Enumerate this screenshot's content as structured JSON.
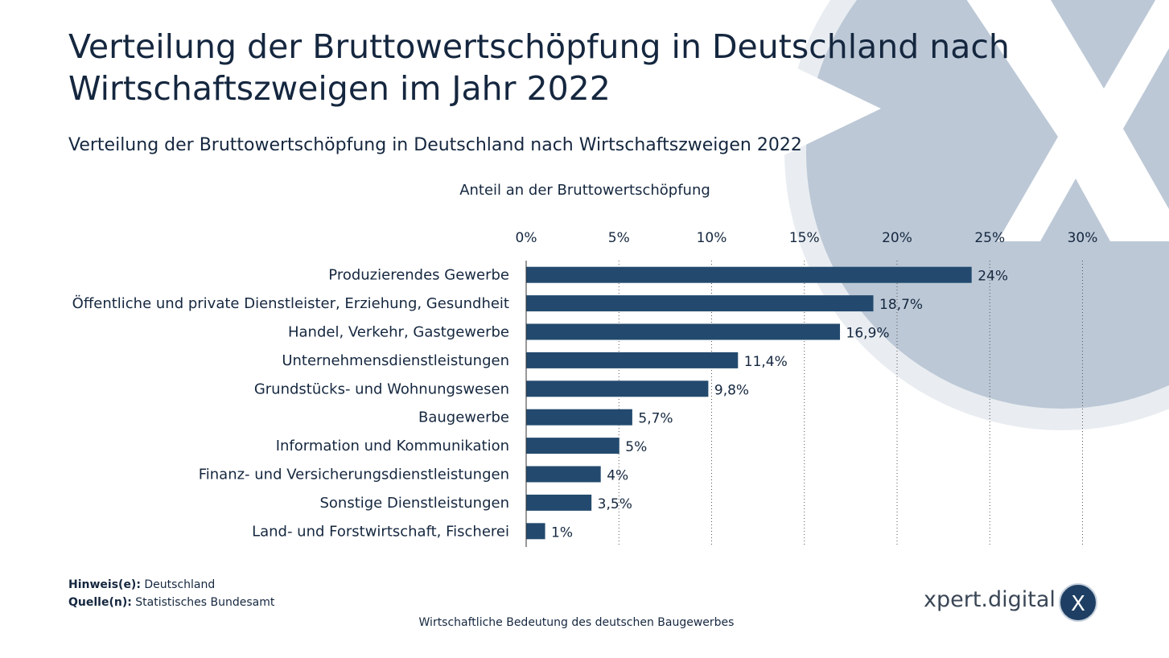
{
  "title": "Verteilung der Bruttowertschöpfung in Deutschland nach Wirtschaftszweigen im Jahr 2022",
  "subtitle": "Verteilung der Bruttowertschöpfung in Deutschland nach Wirtschaftszweigen 2022",
  "notes": {
    "hint_label": "Hinweis(e):",
    "hint_value": "Deutschland",
    "source_label": "Quelle(n):",
    "source_value": "Statistisches Bundesamt"
  },
  "footer": "Wirtschaftliche Bedeutung des deutschen Baugewerbes",
  "brand": {
    "name": "xpert.digital",
    "badge_letter": "X"
  },
  "colors": {
    "bar": "#234a6e",
    "decoration": "#bcc8d6",
    "text": "#15273f"
  },
  "chart_data": {
    "type": "bar",
    "orientation": "horizontal",
    "xlabel": "Anteil an der Bruttowertschöpfung",
    "xlim": [
      0,
      30
    ],
    "xticks": [
      "0%",
      "5%",
      "10%",
      "15%",
      "20%",
      "25%",
      "30%"
    ],
    "grid": true,
    "categories": [
      "Produzierendes Gewerbe",
      "Öffentliche und private Dienstleister, Erziehung, Gesundheit",
      "Handel, Verkehr, Gastgewerbe",
      "Unternehmensdienstleistungen",
      "Grundstücks- und Wohnungswesen",
      "Baugewerbe",
      "Information und Kommunikation",
      "Finanz- und Versicherungsdienstleistungen",
      "Sonstige Dienstleistungen",
      "Land- und Forstwirtschaft, Fischerei"
    ],
    "values": [
      24,
      18.7,
      16.9,
      11.4,
      9.8,
      5.7,
      5,
      4,
      3.5,
      1
    ],
    "value_labels": [
      "24%",
      "18,7%",
      "16,9%",
      "11,4%",
      "9,8%",
      "5,7%",
      "5%",
      "4%",
      "3,5%",
      "1%"
    ]
  }
}
